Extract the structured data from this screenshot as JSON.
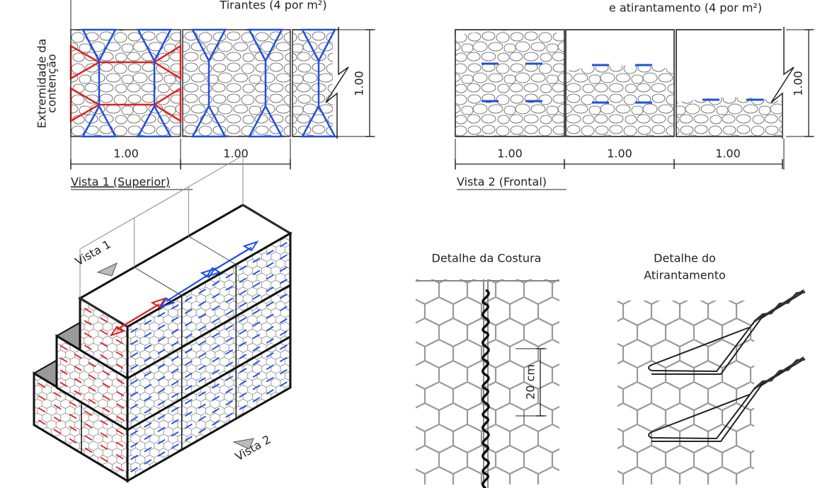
{
  "view1": {
    "top_note": "Tirantes (4 por m²)",
    "side_label": [
      "Extremidade da",
      "contenção"
    ],
    "widths": [
      "1.00",
      "1.00"
    ],
    "height": "1.00",
    "caption": "Vista 1 (Superior)"
  },
  "view2": {
    "top_note": "e atirantamento (4 por m²)",
    "widths": [
      "1.00",
      "1.00",
      "1.00"
    ],
    "height": "1.00",
    "caption": "Vista 2 (Frontal)"
  },
  "isometric": {
    "view1_label": "Vista 1",
    "view2_label": "Vista 2"
  },
  "seam_detail": {
    "title": "Detalhe da Costura",
    "spacing": "20 cm"
  },
  "tie_detail": {
    "title": [
      "Detalhe do",
      "Atirantamento"
    ]
  }
}
